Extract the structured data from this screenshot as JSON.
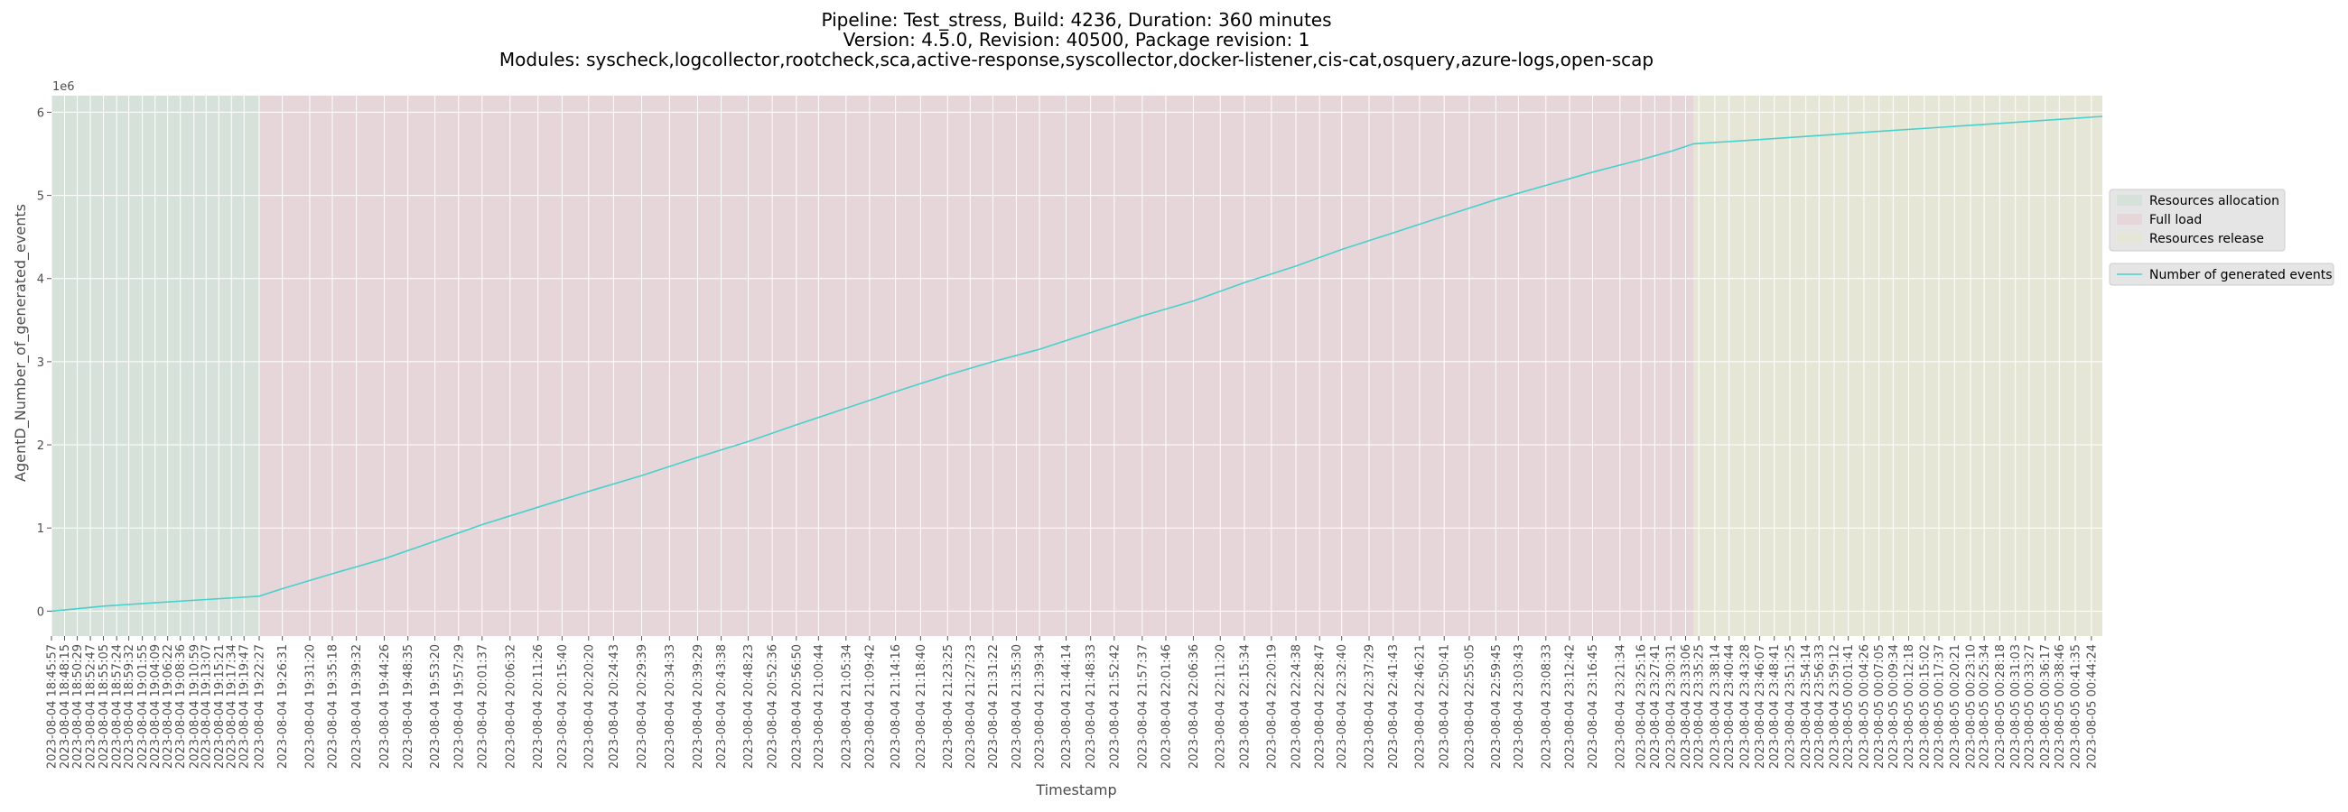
{
  "chart_data": {
    "type": "line",
    "title_lines": [
      "Pipeline: Test_stress, Build: 4236, Duration: 360 minutes",
      "Version: 4.5.0, Revision: 40500, Package revision: 1",
      "Modules: syscheck,logcollector,rootcheck,sca,active-response,syscollector,docker-listener,cis-cat,osquery,azure-logs,open-scap"
    ],
    "xlabel": "Timestamp",
    "ylabel": "AgentD_Number_of_generated_events",
    "y_offset_label": "1e6",
    "ylim": [
      -0.3,
      6.2
    ],
    "yticks": [
      0,
      1,
      2,
      3,
      4,
      5,
      6
    ],
    "y_multiplier": 1000000,
    "grid": true,
    "x_ticks": [
      "2023-08-04 18:45:57",
      "2023-08-04 18:48:15",
      "2023-08-04 18:50:29",
      "2023-08-04 18:52:47",
      "2023-08-04 18:55:05",
      "2023-08-04 18:57:24",
      "2023-08-04 18:59:32",
      "2023-08-04 19:01:55",
      "2023-08-04 19:04:09",
      "2023-08-04 19:06:22",
      "2023-08-04 19:08:36",
      "2023-08-04 19:10:59",
      "2023-08-04 19:13:07",
      "2023-08-04 19:15:21",
      "2023-08-04 19:17:34",
      "2023-08-04 19:19:47",
      "2023-08-04 19:22:27",
      "2023-08-04 19:26:31",
      "2023-08-04 19:31:20",
      "2023-08-04 19:35:18",
      "2023-08-04 19:39:32",
      "2023-08-04 19:44:26",
      "2023-08-04 19:48:35",
      "2023-08-04 19:53:20",
      "2023-08-04 19:57:29",
      "2023-08-04 20:01:37",
      "2023-08-04 20:06:32",
      "2023-08-04 20:11:26",
      "2023-08-04 20:15:40",
      "2023-08-04 20:20:20",
      "2023-08-04 20:24:43",
      "2023-08-04 20:29:39",
      "2023-08-04 20:34:33",
      "2023-08-04 20:39:29",
      "2023-08-04 20:43:38",
      "2023-08-04 20:48:23",
      "2023-08-04 20:52:36",
      "2023-08-04 20:56:50",
      "2023-08-04 21:00:44",
      "2023-08-04 21:05:34",
      "2023-08-04 21:09:42",
      "2023-08-04 21:14:16",
      "2023-08-04 21:18:40",
      "2023-08-04 21:23:25",
      "2023-08-04 21:27:23",
      "2023-08-04 21:31:22",
      "2023-08-04 21:35:30",
      "2023-08-04 21:39:34",
      "2023-08-04 21:44:14",
      "2023-08-04 21:48:33",
      "2023-08-04 21:52:42",
      "2023-08-04 21:57:37",
      "2023-08-04 22:01:46",
      "2023-08-04 22:06:36",
      "2023-08-04 22:11:20",
      "2023-08-04 22:15:34",
      "2023-08-04 22:20:19",
      "2023-08-04 22:24:38",
      "2023-08-04 22:28:47",
      "2023-08-04 22:32:40",
      "2023-08-04 22:37:29",
      "2023-08-04 22:41:43",
      "2023-08-04 22:46:21",
      "2023-08-04 22:50:41",
      "2023-08-04 22:55:05",
      "2023-08-04 22:59:45",
      "2023-08-04 23:03:43",
      "2023-08-04 23:08:33",
      "2023-08-04 23:12:42",
      "2023-08-04 23:16:45",
      "2023-08-04 23:21:34",
      "2023-08-04 23:25:16",
      "2023-08-04 23:27:41",
      "2023-08-04 23:30:31",
      "2023-08-04 23:33:06",
      "2023-08-04 23:35:25",
      "2023-08-04 23:38:14",
      "2023-08-04 23:40:44",
      "2023-08-04 23:43:28",
      "2023-08-04 23:46:07",
      "2023-08-04 23:48:41",
      "2023-08-04 23:51:25",
      "2023-08-04 23:54:14",
      "2023-08-04 23:56:33",
      "2023-08-04 23:59:12",
      "2023-08-05 00:01:41",
      "2023-08-05 00:04:26",
      "2023-08-05 00:07:05",
      "2023-08-05 00:09:34",
      "2023-08-05 00:12:18",
      "2023-08-05 00:15:02",
      "2023-08-05 00:17:37",
      "2023-08-05 00:20:21",
      "2023-08-05 00:23:10",
      "2023-08-05 00:25:34",
      "2023-08-05 00:28:18",
      "2023-08-05 00:31:03",
      "2023-08-05 00:33:27",
      "2023-08-05 00:36:17",
      "2023-08-05 00:38:46",
      "2023-08-05 00:41:35",
      "2023-08-05 00:44:24"
    ],
    "phases": [
      {
        "name": "Resources allocation",
        "start": "2023-08-04 18:45:57",
        "end": "2023-08-04 19:22:27",
        "color": "#d6e2d9"
      },
      {
        "name": "Full load",
        "start": "2023-08-04 19:22:27",
        "end": "2023-08-04 23:34:30",
        "color": "#e6d6d9"
      },
      {
        "name": "Resources release",
        "start": "2023-08-04 23:34:30",
        "end": "2023-08-05 00:46:20",
        "color": "#e6e6d6"
      }
    ],
    "series": [
      {
        "name": "Number of generated events",
        "color": "#48d1cc",
        "points": [
          [
            "2023-08-04 18:45:57",
            0
          ],
          [
            "2023-08-04 18:55:05",
            0.06
          ],
          [
            "2023-08-04 19:04:09",
            0.1
          ],
          [
            "2023-08-04 19:13:07",
            0.14
          ],
          [
            "2023-08-04 19:22:27",
            0.18
          ],
          [
            "2023-08-04 19:26:31",
            0.27
          ],
          [
            "2023-08-04 19:35:18",
            0.45
          ],
          [
            "2023-08-04 19:44:26",
            0.63
          ],
          [
            "2023-08-04 19:53:20",
            0.84
          ],
          [
            "2023-08-04 20:01:37",
            1.04
          ],
          [
            "2023-08-04 20:11:26",
            1.25
          ],
          [
            "2023-08-04 20:20:20",
            1.44
          ],
          [
            "2023-08-04 20:29:39",
            1.63
          ],
          [
            "2023-08-04 20:39:29",
            1.85
          ],
          [
            "2023-08-04 20:48:23",
            2.04
          ],
          [
            "2023-08-04 20:56:50",
            2.24
          ],
          [
            "2023-08-04 21:05:34",
            2.44
          ],
          [
            "2023-08-04 21:14:16",
            2.64
          ],
          [
            "2023-08-04 21:23:25",
            2.84
          ],
          [
            "2023-08-04 21:31:22",
            3.0
          ],
          [
            "2023-08-04 21:39:34",
            3.15
          ],
          [
            "2023-08-04 21:48:33",
            3.35
          ],
          [
            "2023-08-04 21:57:37",
            3.55
          ],
          [
            "2023-08-04 22:06:36",
            3.73
          ],
          [
            "2023-08-04 22:15:34",
            3.95
          ],
          [
            "2023-08-04 22:24:38",
            4.15
          ],
          [
            "2023-08-04 22:32:40",
            4.35
          ],
          [
            "2023-08-04 22:41:43",
            4.55
          ],
          [
            "2023-08-04 22:50:41",
            4.75
          ],
          [
            "2023-08-04 22:59:45",
            4.95
          ],
          [
            "2023-08-04 23:08:33",
            5.12
          ],
          [
            "2023-08-04 23:16:45",
            5.28
          ],
          [
            "2023-08-04 23:25:16",
            5.43
          ],
          [
            "2023-08-04 23:30:31",
            5.53
          ],
          [
            "2023-08-04 23:34:30",
            5.62
          ],
          [
            "2023-08-04 23:43:28",
            5.66
          ],
          [
            "2023-08-04 23:54:14",
            5.71
          ],
          [
            "2023-08-05 00:07:05",
            5.77
          ],
          [
            "2023-08-05 00:20:21",
            5.83
          ],
          [
            "2023-08-05 00:33:27",
            5.89
          ],
          [
            "2023-08-05 00:46:20",
            5.95
          ]
        ]
      }
    ],
    "legend": {
      "placement": "right",
      "phase_entries": [
        "Resources allocation",
        "Full load",
        "Resources release"
      ],
      "series_entries": [
        "Number of generated events"
      ]
    },
    "xlim": [
      "2023-08-04 18:45:57",
      "2023-08-05 00:46:20"
    ]
  }
}
